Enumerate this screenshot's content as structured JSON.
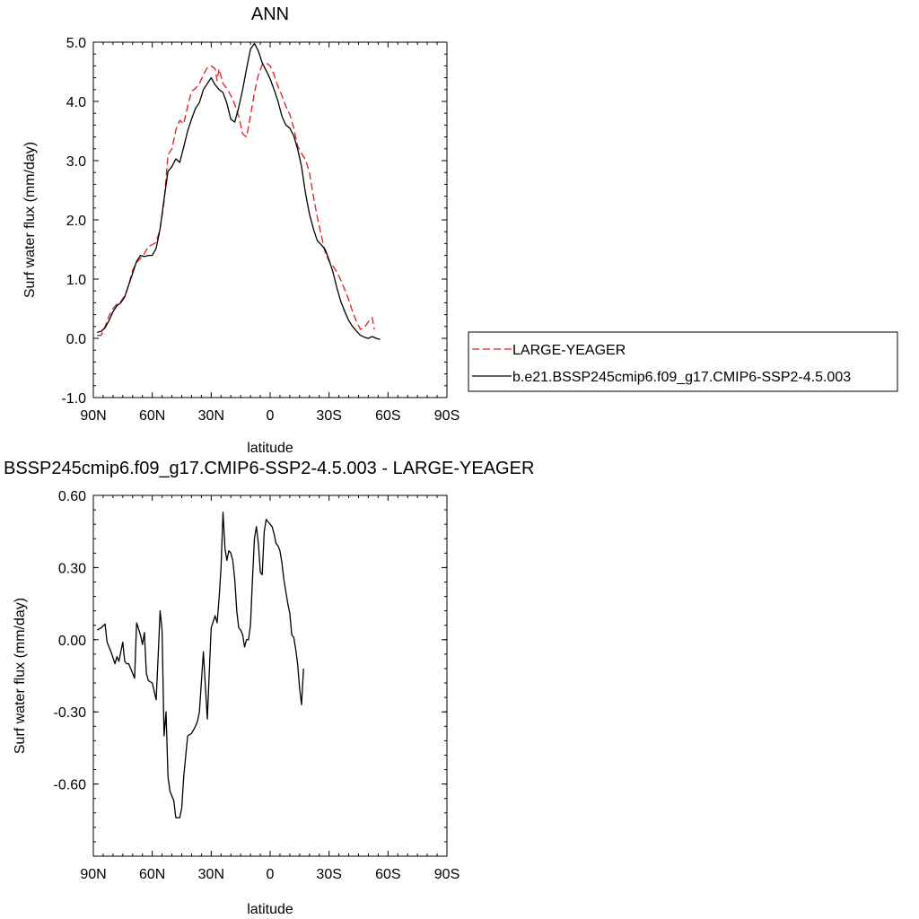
{
  "chart_data": [
    {
      "type": "line",
      "title": "ANN",
      "xlabel": "latitude",
      "ylabel": "Surf water flux (mm/day)",
      "xlim": [
        -90,
        90
      ],
      "ylim": [
        -1.0,
        5.0
      ],
      "xticks": [
        {
          "value": -90,
          "label": "90N"
        },
        {
          "value": -60,
          "label": "60N"
        },
        {
          "value": -30,
          "label": "30N"
        },
        {
          "value": 0,
          "label": "0"
        },
        {
          "value": 30,
          "label": "30S"
        },
        {
          "value": 60,
          "label": "60S"
        },
        {
          "value": 90,
          "label": "90S"
        }
      ],
      "yticks": [
        {
          "value": -1.0,
          "label": "-1.0"
        },
        {
          "value": 0.0,
          "label": "0.0"
        },
        {
          "value": 1.0,
          "label": "1.0"
        },
        {
          "value": 2.0,
          "label": "2.0"
        },
        {
          "value": 3.0,
          "label": "3.0"
        },
        {
          "value": 4.0,
          "label": "4.0"
        },
        {
          "value": 5.0,
          "label": "5.0"
        }
      ],
      "legend_placement": "outside-right",
      "series": [
        {
          "name": "LARGE-YEAGER",
          "color": "#e41a1c",
          "style": "dashed",
          "points": [
            [
              -88,
              0.05
            ],
            [
              -86,
              0.05
            ],
            [
              -84,
              0.2
            ],
            [
              -82,
              0.38
            ],
            [
              -80,
              0.5
            ],
            [
              -78,
              0.58
            ],
            [
              -76,
              0.62
            ],
            [
              -74,
              0.72
            ],
            [
              -72,
              0.9
            ],
            [
              -70,
              1.15
            ],
            [
              -68,
              1.28
            ],
            [
              -66,
              1.35
            ],
            [
              -64,
              1.43
            ],
            [
              -62,
              1.55
            ],
            [
              -60,
              1.58
            ],
            [
              -58,
              1.62
            ],
            [
              -56,
              1.85
            ],
            [
              -54,
              2.3
            ],
            [
              -52,
              3.1
            ],
            [
              -50,
              3.2
            ],
            [
              -48,
              3.52
            ],
            [
              -46,
              3.68
            ],
            [
              -44,
              3.62
            ],
            [
              -42,
              3.92
            ],
            [
              -40,
              4.17
            ],
            [
              -38,
              4.22
            ],
            [
              -36,
              4.3
            ],
            [
              -34,
              4.45
            ],
            [
              -32,
              4.57
            ],
            [
              -30,
              4.6
            ],
            [
              -28,
              4.55
            ],
            [
              -27,
              4.35
            ],
            [
              -26,
              4.55
            ],
            [
              -24,
              4.3
            ],
            [
              -22,
              4.22
            ],
            [
              -20,
              4.1
            ],
            [
              -18,
              3.95
            ],
            [
              -16,
              3.75
            ],
            [
              -14,
              3.45
            ],
            [
              -12,
              3.4
            ],
            [
              -10,
              3.75
            ],
            [
              -8,
              4.15
            ],
            [
              -6,
              4.45
            ],
            [
              -4,
              4.62
            ],
            [
              -2,
              4.65
            ],
            [
              0,
              4.6
            ],
            [
              2,
              4.45
            ],
            [
              4,
              4.25
            ],
            [
              6,
              4.1
            ],
            [
              8,
              3.92
            ],
            [
              10,
              3.78
            ],
            [
              12,
              3.55
            ],
            [
              14,
              3.25
            ],
            [
              16,
              3.12
            ],
            [
              18,
              3.02
            ],
            [
              20,
              2.8
            ],
            [
              22,
              2.4
            ],
            [
              24,
              2.05
            ],
            [
              26,
              1.75
            ],
            [
              28,
              1.45
            ],
            [
              30,
              1.3
            ],
            [
              32,
              1.22
            ],
            [
              34,
              1.12
            ],
            [
              36,
              0.98
            ],
            [
              38,
              0.82
            ],
            [
              40,
              0.65
            ],
            [
              42,
              0.45
            ],
            [
              44,
              0.28
            ],
            [
              46,
              0.15
            ],
            [
              48,
              0.18
            ],
            [
              50,
              0.28
            ],
            [
              52,
              0.35
            ],
            [
              53,
              0.15
            ]
          ]
        },
        {
          "name": "b.e21.BSSP245cmip6.f09_g17.CMIP6-SSP2-4.5.003",
          "color": "#000000",
          "style": "solid",
          "points": [
            [
              -88,
              0.1
            ],
            [
              -86,
              0.12
            ],
            [
              -84,
              0.18
            ],
            [
              -82,
              0.3
            ],
            [
              -80,
              0.45
            ],
            [
              -78,
              0.55
            ],
            [
              -76,
              0.6
            ],
            [
              -74,
              0.7
            ],
            [
              -72,
              0.9
            ],
            [
              -70,
              1.1
            ],
            [
              -68,
              1.3
            ],
            [
              -66,
              1.4
            ],
            [
              -64,
              1.38
            ],
            [
              -62,
              1.4
            ],
            [
              -60,
              1.4
            ],
            [
              -58,
              1.52
            ],
            [
              -56,
              1.85
            ],
            [
              -54,
              2.35
            ],
            [
              -52,
              2.82
            ],
            [
              -50,
              2.9
            ],
            [
              -48,
              3.03
            ],
            [
              -46,
              2.97
            ],
            [
              -44,
              3.23
            ],
            [
              -42,
              3.5
            ],
            [
              -40,
              3.7
            ],
            [
              -38,
              3.88
            ],
            [
              -36,
              3.98
            ],
            [
              -34,
              4.2
            ],
            [
              -32,
              4.3
            ],
            [
              -30,
              4.4
            ],
            [
              -28,
              4.28
            ],
            [
              -26,
              4.2
            ],
            [
              -24,
              4.15
            ],
            [
              -22,
              3.97
            ],
            [
              -20,
              3.7
            ],
            [
              -18,
              3.65
            ],
            [
              -16,
              3.9
            ],
            [
              -14,
              4.2
            ],
            [
              -12,
              4.55
            ],
            [
              -10,
              4.88
            ],
            [
              -8,
              4.98
            ],
            [
              -6,
              4.85
            ],
            [
              -4,
              4.65
            ],
            [
              -2,
              4.52
            ],
            [
              0,
              4.38
            ],
            [
              2,
              4.2
            ],
            [
              4,
              4.0
            ],
            [
              6,
              3.75
            ],
            [
              8,
              3.6
            ],
            [
              10,
              3.55
            ],
            [
              12,
              3.42
            ],
            [
              14,
              3.2
            ],
            [
              16,
              2.9
            ],
            [
              18,
              2.45
            ],
            [
              20,
              2.1
            ],
            [
              22,
              1.85
            ],
            [
              24,
              1.65
            ],
            [
              26,
              1.58
            ],
            [
              28,
              1.5
            ],
            [
              30,
              1.32
            ],
            [
              32,
              1.12
            ],
            [
              34,
              0.85
            ],
            [
              36,
              0.62
            ],
            [
              38,
              0.45
            ],
            [
              40,
              0.3
            ],
            [
              42,
              0.2
            ],
            [
              44,
              0.12
            ],
            [
              46,
              0.05
            ],
            [
              48,
              0.02
            ],
            [
              50,
              0.0
            ],
            [
              52,
              0.03
            ],
            [
              54,
              0.0
            ],
            [
              56,
              -0.02
            ]
          ]
        }
      ]
    },
    {
      "type": "line",
      "title": "BSSP245cmip6.f09_g17.CMIP6-SSP2-4.5.003 - LARGE-YEAGER",
      "xlabel": "latitude",
      "ylabel": "Surf water flux (mm/day)",
      "xlim": [
        -90,
        90
      ],
      "ylim": [
        -0.9,
        0.6
      ],
      "xticks": [
        {
          "value": -90,
          "label": "90N"
        },
        {
          "value": -60,
          "label": "60N"
        },
        {
          "value": -30,
          "label": "30N"
        },
        {
          "value": 0,
          "label": "0"
        },
        {
          "value": 30,
          "label": "30S"
        },
        {
          "value": 60,
          "label": "60S"
        },
        {
          "value": 90,
          "label": "90S"
        }
      ],
      "yticks": [
        {
          "value": -0.6,
          "label": "-0.60"
        },
        {
          "value": -0.3,
          "label": "-0.30"
        },
        {
          "value": 0.0,
          "label": "0.00"
        },
        {
          "value": 0.3,
          "label": "0.30"
        },
        {
          "value": 0.6,
          "label": "0.60"
        }
      ],
      "series": [
        {
          "color": "#000000",
          "style": "solid",
          "points": [
            [
              -88,
              0.04
            ],
            [
              -86,
              0.05
            ],
            [
              -84,
              0.065
            ],
            [
              -83,
              -0.01
            ],
            [
              -81,
              -0.05
            ],
            [
              -79,
              -0.1
            ],
            [
              -78,
              -0.07
            ],
            [
              -77,
              -0.09
            ],
            [
              -75,
              -0.01
            ],
            [
              -74,
              -0.09
            ],
            [
              -73,
              -0.1
            ],
            [
              -72,
              -0.1
            ],
            [
              -71,
              -0.12
            ],
            [
              -69,
              -0.16
            ],
            [
              -68,
              0.07
            ],
            [
              -66,
              0.02
            ],
            [
              -65,
              -0.02
            ],
            [
              -64,
              0.03
            ],
            [
              -63,
              -0.14
            ],
            [
              -62,
              -0.17
            ],
            [
              -60,
              -0.18
            ],
            [
              -58,
              -0.25
            ],
            [
              -57,
              -0.07
            ],
            [
              -56,
              0.12
            ],
            [
              -55,
              0.04
            ],
            [
              -54,
              -0.4
            ],
            [
              -53,
              -0.3
            ],
            [
              -52,
              -0.57
            ],
            [
              -51,
              -0.63
            ],
            [
              -49,
              -0.67
            ],
            [
              -48,
              -0.74
            ],
            [
              -46,
              -0.74
            ],
            [
              -45,
              -0.7
            ],
            [
              -44,
              -0.57
            ],
            [
              -42,
              -0.4
            ],
            [
              -40,
              -0.39
            ],
            [
              -38,
              -0.36
            ],
            [
              -37,
              -0.34
            ],
            [
              -36,
              -0.3
            ],
            [
              -34,
              -0.05
            ],
            [
              -32,
              -0.33
            ],
            [
              -30,
              0.05
            ],
            [
              -28,
              0.1
            ],
            [
              -27,
              0.07
            ],
            [
              -26,
              0.17
            ],
            [
              -25,
              0.3
            ],
            [
              -24,
              0.53
            ],
            [
              -23,
              0.38
            ],
            [
              -22,
              0.33
            ],
            [
              -21,
              0.37
            ],
            [
              -20,
              0.36
            ],
            [
              -19,
              0.33
            ],
            [
              -18,
              0.25
            ],
            [
              -17,
              0.12
            ],
            [
              -16,
              0.05
            ],
            [
              -15,
              0.04
            ],
            [
              -14,
              0.02
            ],
            [
              -13,
              -0.03
            ],
            [
              -12,
              0.0
            ],
            [
              -11,
              0.0
            ],
            [
              -10,
              0.06
            ],
            [
              -9,
              0.25
            ],
            [
              -8,
              0.42
            ],
            [
              -7,
              0.47
            ],
            [
              -6,
              0.4
            ],
            [
              -5,
              0.28
            ],
            [
              -4,
              0.27
            ],
            [
              -3,
              0.45
            ],
            [
              -2,
              0.5
            ],
            [
              -1,
              0.49
            ],
            [
              0,
              0.48
            ],
            [
              1,
              0.47
            ],
            [
              2,
              0.44
            ],
            [
              3,
              0.4
            ],
            [
              4,
              0.39
            ],
            [
              5,
              0.37
            ],
            [
              6,
              0.32
            ],
            [
              7,
              0.25
            ],
            [
              8,
              0.2
            ],
            [
              9,
              0.15
            ],
            [
              10,
              0.11
            ],
            [
              11,
              0.02
            ],
            [
              12,
              0.01
            ],
            [
              13,
              -0.04
            ],
            [
              14,
              -0.1
            ],
            [
              15,
              -0.2
            ],
            [
              16,
              -0.27
            ],
            [
              17,
              -0.12
            ]
          ]
        }
      ]
    }
  ]
}
